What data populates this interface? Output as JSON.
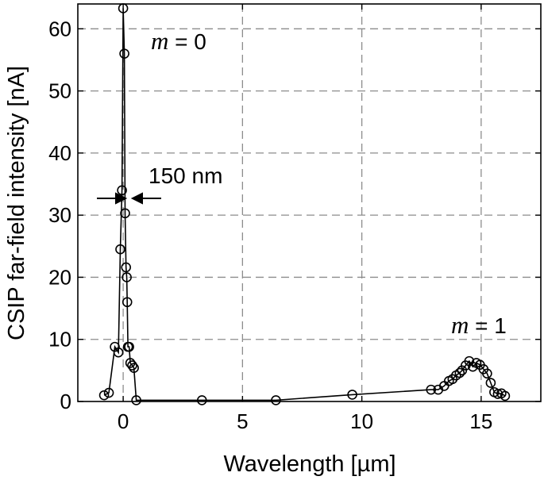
{
  "chart_data": {
    "type": "line",
    "xlabel": "Wavelength [µm]",
    "ylabel": "CSIP far-field intensity [nA]",
    "xlim": [
      -1.9,
      17.5
    ],
    "ylim": [
      0,
      64
    ],
    "xticks": [
      0,
      5,
      10,
      15
    ],
    "yticks": [
      0,
      10,
      20,
      30,
      40,
      50,
      60
    ],
    "grid": true,
    "series": [
      {
        "marker": "circle",
        "color": "#000000",
        "points": [
          [
            -0.8,
            1.0
          ],
          [
            -0.6,
            1.4
          ],
          [
            -0.35,
            8.8
          ],
          [
            -0.2,
            7.9
          ],
          [
            -0.12,
            24.5
          ],
          [
            -0.05,
            34.0
          ],
          [
            0.0,
            63.3
          ],
          [
            0.05,
            56.0
          ],
          [
            0.08,
            30.3
          ],
          [
            0.12,
            21.6
          ],
          [
            0.15,
            20.0
          ],
          [
            0.17,
            16.0
          ],
          [
            0.2,
            8.8
          ],
          [
            0.25,
            8.8
          ],
          [
            0.3,
            6.2
          ],
          [
            0.38,
            5.8
          ],
          [
            0.45,
            5.4
          ],
          [
            0.55,
            0.2
          ],
          [
            3.3,
            0.2
          ],
          [
            6.4,
            0.2
          ],
          [
            9.6,
            1.1
          ],
          [
            12.9,
            1.9
          ],
          [
            13.2,
            1.9
          ],
          [
            13.45,
            2.5
          ],
          [
            13.65,
            3.3
          ],
          [
            13.8,
            3.6
          ],
          [
            13.95,
            4.2
          ],
          [
            14.1,
            4.6
          ],
          [
            14.2,
            5.0
          ],
          [
            14.35,
            5.8
          ],
          [
            14.5,
            6.5
          ],
          [
            14.65,
            5.6
          ],
          [
            14.8,
            6.2
          ],
          [
            14.95,
            5.9
          ],
          [
            15.1,
            5.2
          ],
          [
            15.25,
            4.5
          ],
          [
            15.4,
            3.0
          ],
          [
            15.55,
            1.5
          ],
          [
            15.7,
            1.2
          ],
          [
            15.85,
            1.3
          ],
          [
            16.0,
            0.9
          ]
        ]
      }
    ],
    "annotations": [
      {
        "prefix_italic": "m",
        "text": " = 0"
      },
      {
        "text": "150 nm"
      },
      {
        "prefix_italic": "m",
        "text": " = 1"
      }
    ]
  }
}
